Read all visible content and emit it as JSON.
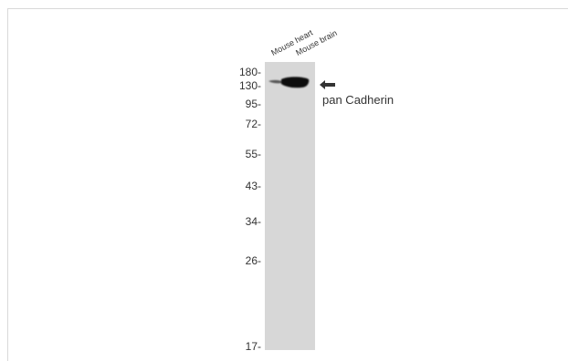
{
  "lanes": [
    "Mouse heart",
    "Mouse brain"
  ],
  "markers": [
    "180-",
    "130-",
    "95-",
    "72-",
    "55-",
    "43-",
    "34-",
    "26-",
    "17-"
  ],
  "band_label": "pan Cadherin",
  "colors": {
    "membrane": "#d7d7d7",
    "band": "#111111",
    "text": "#333333"
  },
  "icons": {
    "arrow": "left-arrow-icon"
  }
}
